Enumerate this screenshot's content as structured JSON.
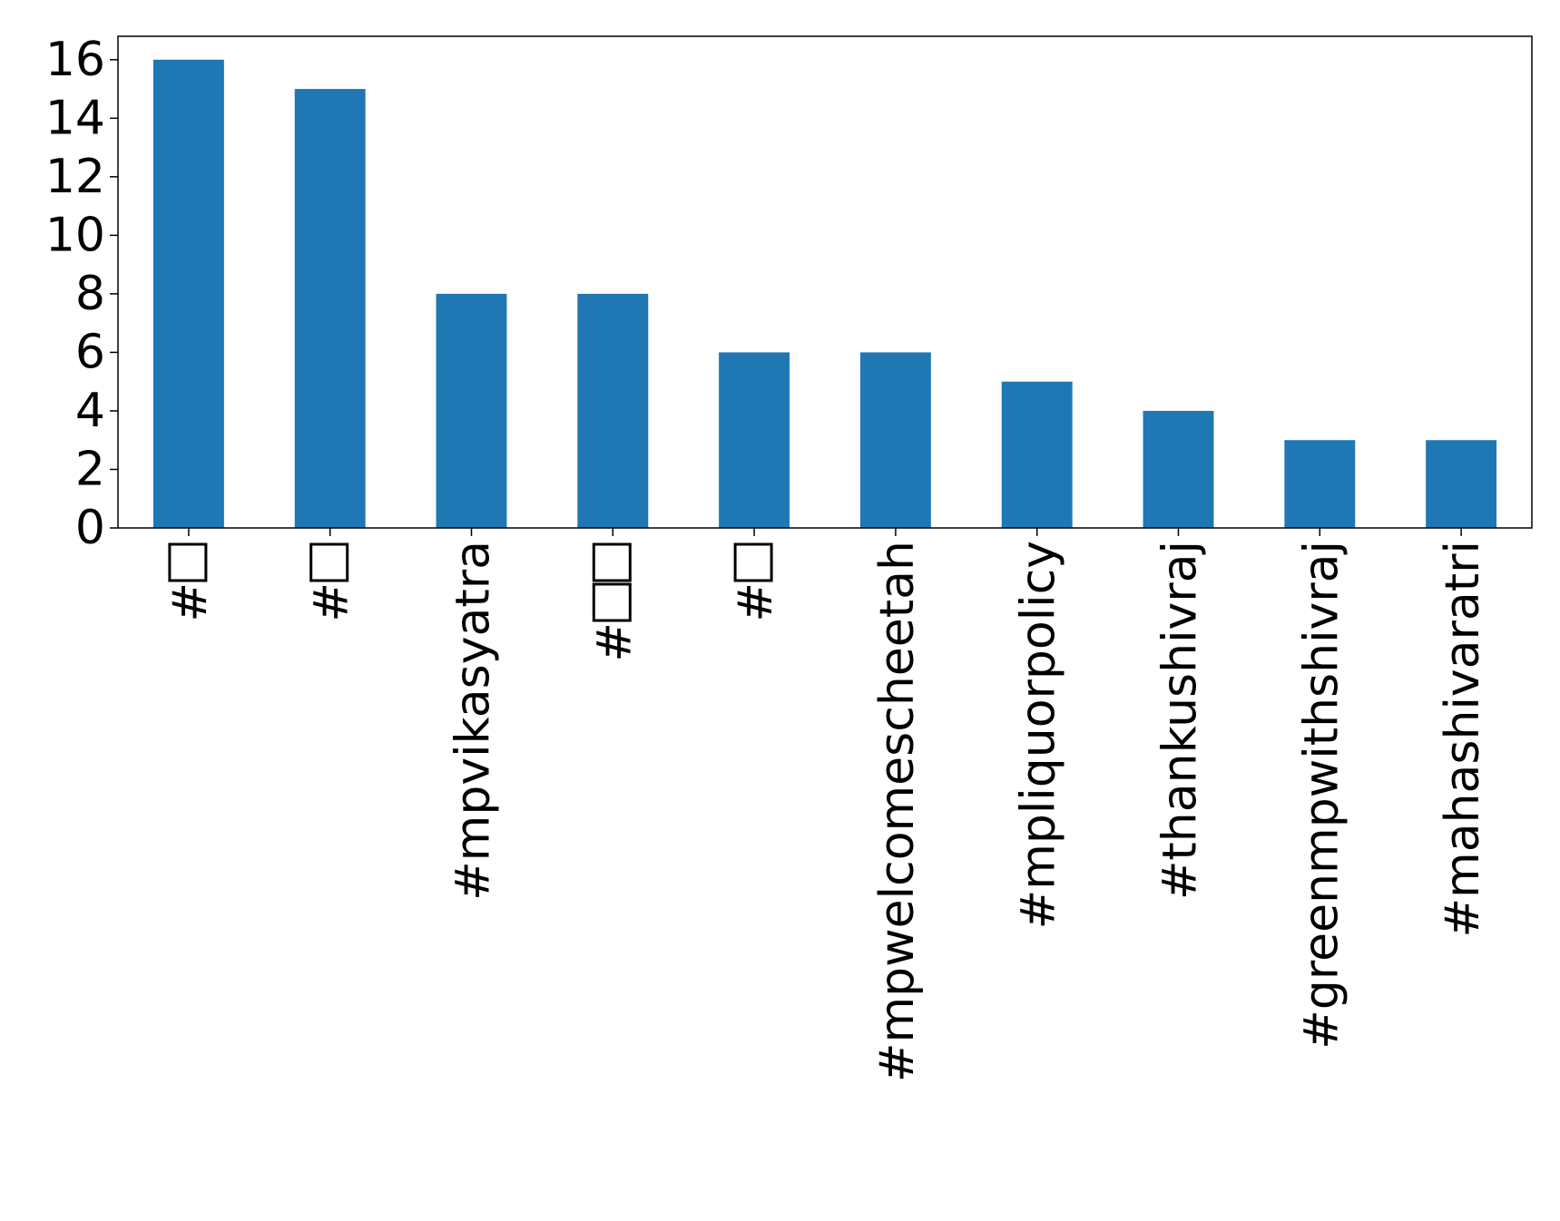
{
  "chart_data": {
    "type": "bar",
    "categories": [
      "#□",
      "#□",
      "#mpvikasyatra",
      "#□□",
      "#□",
      "#mpwelcomescheetah",
      "#mpliquorpolicy",
      "#thankushivraj",
      "#greenmpwithshivraj",
      "#mahashivaratri"
    ],
    "values": [
      16,
      15,
      8,
      8,
      6,
      6,
      5,
      4,
      3,
      3
    ],
    "ylim": [
      0,
      16.8
    ],
    "yticks": [
      0,
      2,
      4,
      6,
      8,
      10,
      12,
      14,
      16
    ],
    "title": "",
    "xlabel": "",
    "ylabel": "",
    "grid": false,
    "bar_color": "#1f77b4"
  }
}
